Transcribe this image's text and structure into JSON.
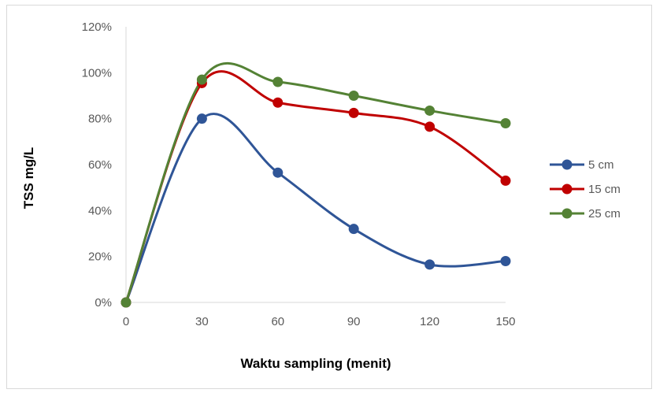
{
  "chart_data": {
    "type": "line",
    "title": "",
    "xlabel": "Waktu sampling (menit)",
    "ylabel": "TSS mg/L",
    "x": [
      0,
      30,
      60,
      90,
      120,
      150
    ],
    "x_tick_labels": [
      "0",
      "30",
      "60",
      "90",
      "120",
      "150"
    ],
    "y_tick_labels": [
      "0%",
      "20%",
      "40%",
      "60%",
      "80%",
      "100%",
      "120%"
    ],
    "xlim": [
      0,
      150
    ],
    "ylim": [
      0,
      120
    ],
    "smoothed": true,
    "grid": false,
    "legend_position": "right",
    "series": [
      {
        "name": "5 cm",
        "color": "#2F5597",
        "values": [
          0,
          80,
          56.5,
          32,
          16.5,
          18
        ]
      },
      {
        "name": "15 cm",
        "color": "#C00000",
        "values": [
          0,
          95.5,
          87,
          82.5,
          76.5,
          53
        ]
      },
      {
        "name": "25 cm",
        "color": "#548235",
        "values": [
          0,
          97,
          96,
          90,
          83.5,
          78
        ]
      }
    ]
  }
}
